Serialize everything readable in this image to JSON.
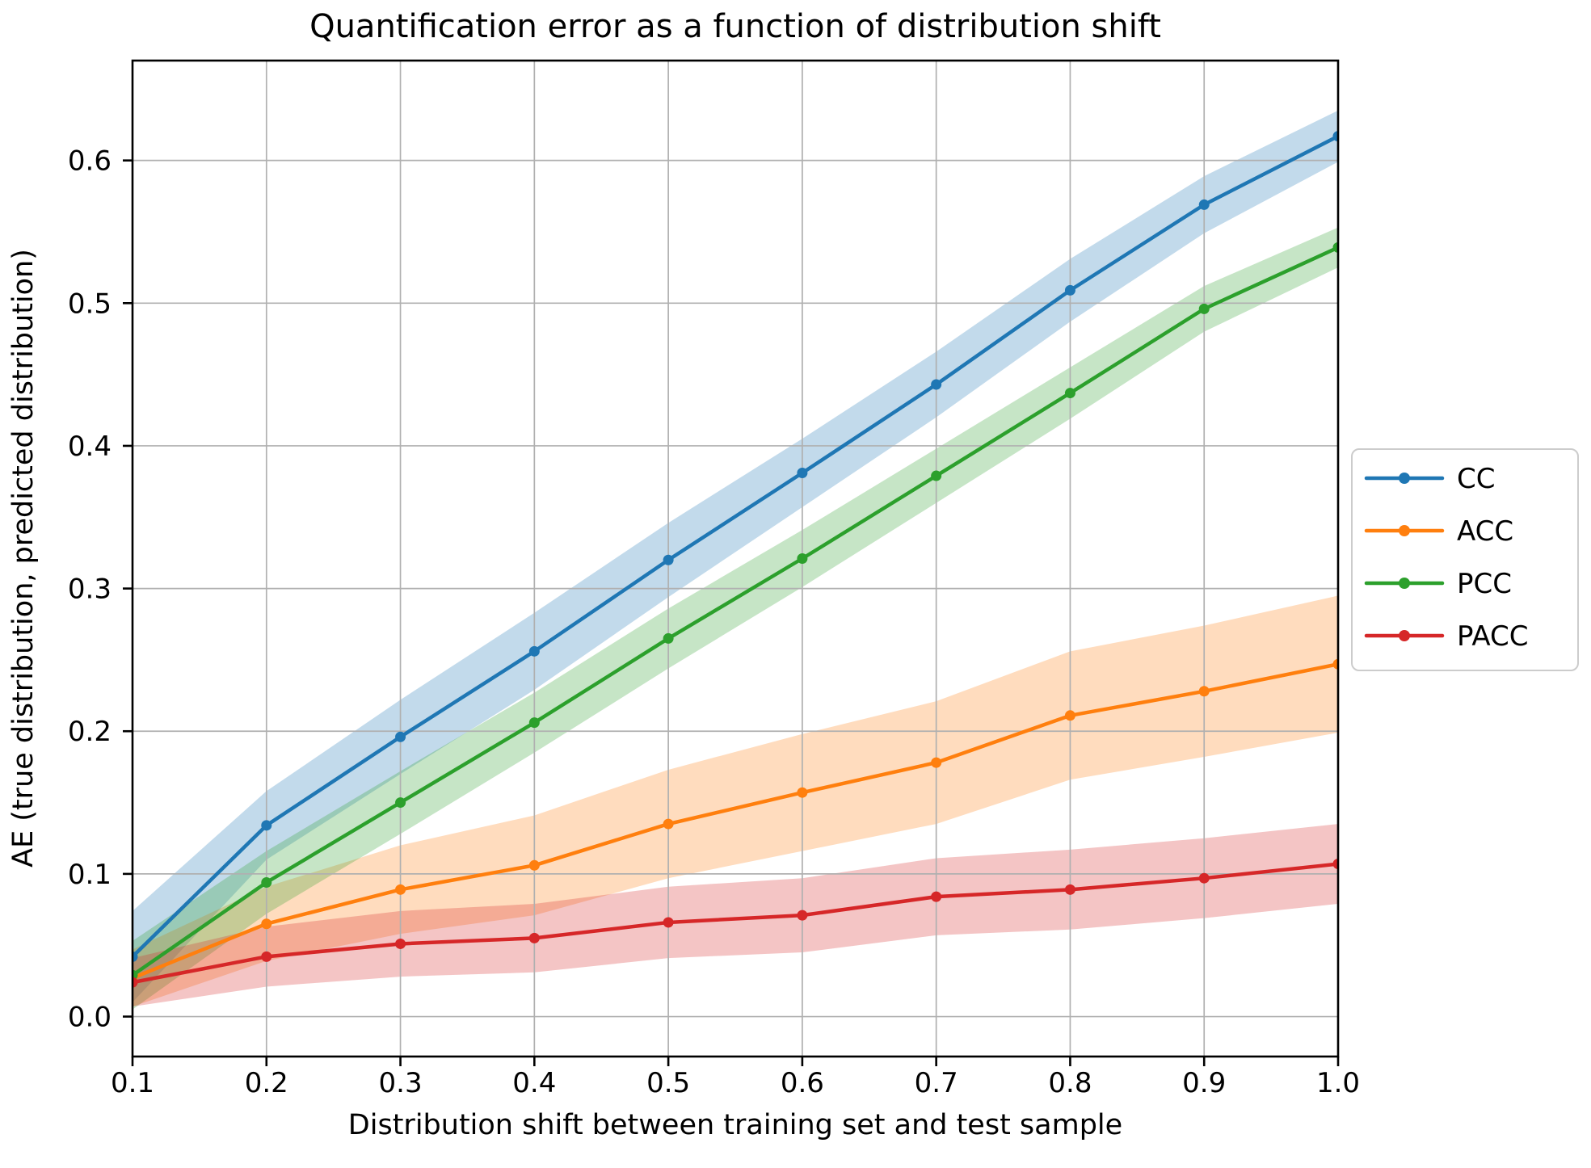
{
  "chart_data": {
    "type": "line",
    "title": "Quantification error as a function of distribution shift",
    "xlabel": "Distribution shift between training set and test sample",
    "ylabel": "AE (true distribution, predicted distribution)",
    "x": [
      0.1,
      0.2,
      0.3,
      0.4,
      0.5,
      0.6,
      0.7,
      0.8,
      0.9,
      1.0
    ],
    "xtick_labels": [
      "0.1",
      "0.2",
      "0.3",
      "0.4",
      "0.5",
      "0.6",
      "0.7",
      "0.8",
      "0.9",
      "1.0"
    ],
    "ytick_values": [
      0.0,
      0.1,
      0.2,
      0.3,
      0.4,
      0.5,
      0.6
    ],
    "ytick_labels": [
      "0.0",
      "0.1",
      "0.2",
      "0.3",
      "0.4",
      "0.5",
      "0.6"
    ],
    "xlim": [
      0.1,
      1.0
    ],
    "ylim": [
      -0.028,
      0.67
    ],
    "grid": true,
    "grid_color": "#b0b0b0",
    "band_opacity": 0.27,
    "legend": {
      "position": "outside-right",
      "entries": [
        "CC",
        "ACC",
        "PCC",
        "PACC"
      ]
    },
    "series": [
      {
        "name": "CC",
        "color": "#1f77b4",
        "values": [
          0.042,
          0.134,
          0.196,
          0.256,
          0.32,
          0.381,
          0.443,
          0.509,
          0.569,
          0.617
        ],
        "band_halfwidth": [
          0.032,
          0.024,
          0.026,
          0.027,
          0.026,
          0.024,
          0.023,
          0.022,
          0.02,
          0.018
        ]
      },
      {
        "name": "ACC",
        "color": "#ff7f0e",
        "values": [
          0.027,
          0.065,
          0.089,
          0.106,
          0.135,
          0.157,
          0.178,
          0.211,
          0.228,
          0.247
        ],
        "band_halfwidth": [
          0.02,
          0.026,
          0.031,
          0.035,
          0.038,
          0.041,
          0.043,
          0.045,
          0.046,
          0.048
        ]
      },
      {
        "name": "PCC",
        "color": "#2ca02c",
        "values": [
          0.029,
          0.094,
          0.15,
          0.206,
          0.265,
          0.321,
          0.379,
          0.437,
          0.496,
          0.539
        ],
        "band_halfwidth": [
          0.024,
          0.022,
          0.022,
          0.021,
          0.021,
          0.02,
          0.019,
          0.018,
          0.016,
          0.014
        ]
      },
      {
        "name": "PACC",
        "color": "#d62728",
        "values": [
          0.024,
          0.042,
          0.051,
          0.055,
          0.066,
          0.071,
          0.084,
          0.089,
          0.097,
          0.107
        ],
        "band_halfwidth": [
          0.017,
          0.021,
          0.023,
          0.024,
          0.025,
          0.026,
          0.027,
          0.028,
          0.028,
          0.028
        ]
      }
    ]
  }
}
